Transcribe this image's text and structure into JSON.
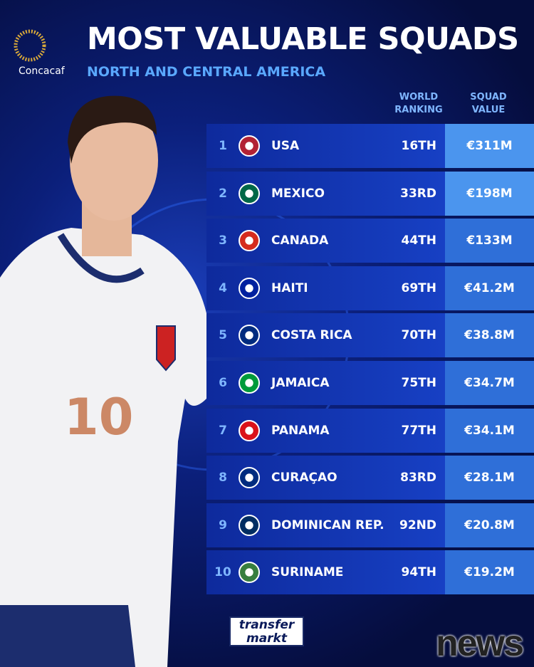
{
  "header": {
    "logo": "Concacaf",
    "title": "MOST VALUABLE SQUADS",
    "subtitle": "NORTH AND CENTRAL AMERICA"
  },
  "table": {
    "columns": [
      "WORLD RANKING",
      "SQUAD VALUE"
    ],
    "rows": [
      [
        1,
        "USA",
        "16TH",
        "€311M"
      ],
      [
        2,
        "MEXICO",
        "33RD",
        "€198M"
      ],
      [
        3,
        "CANADA",
        "44TH",
        "€133M"
      ],
      [
        4,
        "HAITI",
        "69TH",
        "€41.2M"
      ],
      [
        5,
        "COSTA RICA",
        "70TH",
        "€38.8M"
      ],
      [
        6,
        "JAMAICA",
        "75TH",
        "€34.7M"
      ],
      [
        7,
        "PANAMA",
        "77TH",
        "€34.1M"
      ],
      [
        8,
        "CURAÇAO",
        "83RD",
        "€28.1M"
      ],
      [
        9,
        "DOMINICAN REP.",
        "92ND",
        "€20.8M"
      ],
      [
        10,
        "SURINAME",
        "94TH",
        "€19.2M"
      ]
    ]
  },
  "footer": {
    "brand_top": "transfer",
    "brand_bottom": "markt",
    "watermark": "news"
  }
}
